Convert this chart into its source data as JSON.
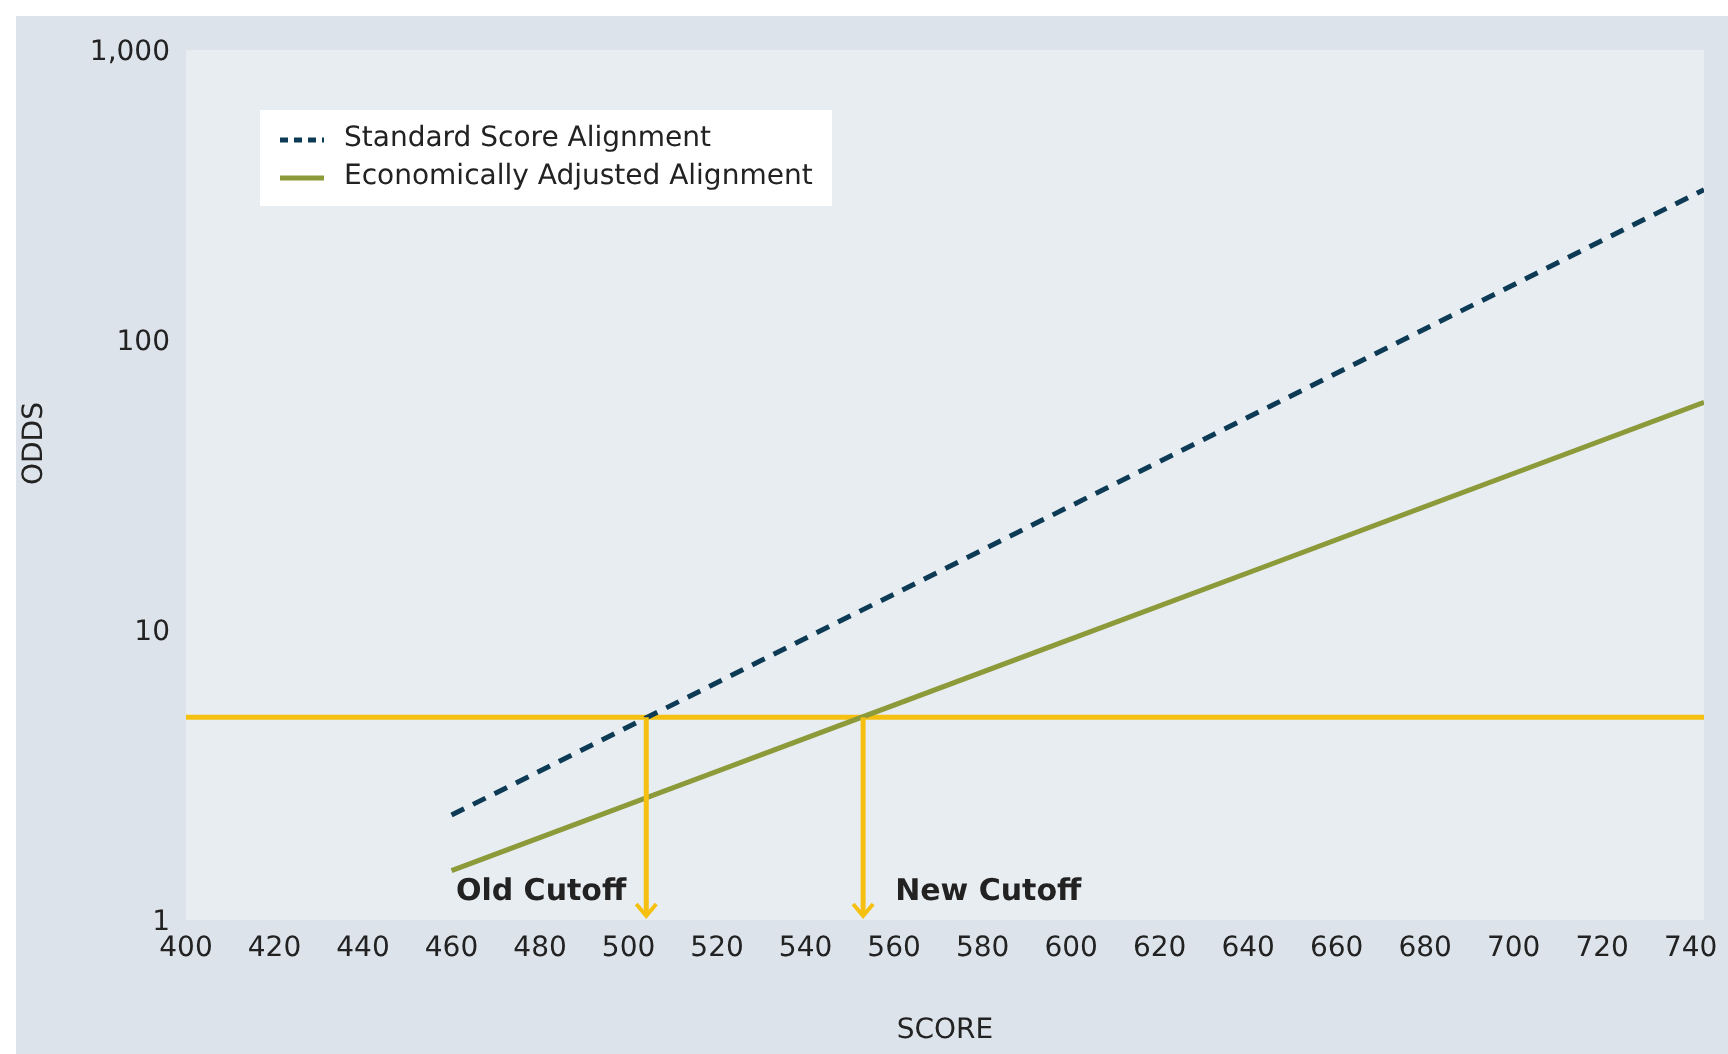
{
  "chart_data": {
    "type": "line",
    "xlabel": "SCORE",
    "ylabel": "ODDS",
    "xlim": [
      400,
      743
    ],
    "xticks": [
      400,
      420,
      440,
      460,
      480,
      500,
      520,
      540,
      560,
      580,
      600,
      620,
      640,
      660,
      680,
      700,
      720,
      740
    ],
    "x": [
      460,
      743
    ],
    "ylim": [
      1,
      1000
    ],
    "yticks": [
      1,
      10,
      100,
      {
        "value": 1000,
        "label": "1,000"
      }
    ],
    "log": "y",
    "series": [
      {
        "name": "Standard Score Alignment",
        "color": "#0d3b55",
        "line_style": "dashed",
        "values": [
          2.3,
          330
        ]
      },
      {
        "name": "Economically Adjusted Alignment",
        "color": "#8c9a3a",
        "line_style": "solid",
        "values": [
          1.48,
          61
        ]
      }
    ],
    "ref_lines": [
      {
        "axis": "y",
        "value": 5,
        "color": "#f5c010"
      }
    ],
    "annotations": [
      {
        "text": "Old Cutoff",
        "x": 504,
        "y": 5
      },
      {
        "text": "New Cutoff",
        "x": 553,
        "y": 5
      }
    ],
    "legend": "top left",
    "marker": "none"
  }
}
